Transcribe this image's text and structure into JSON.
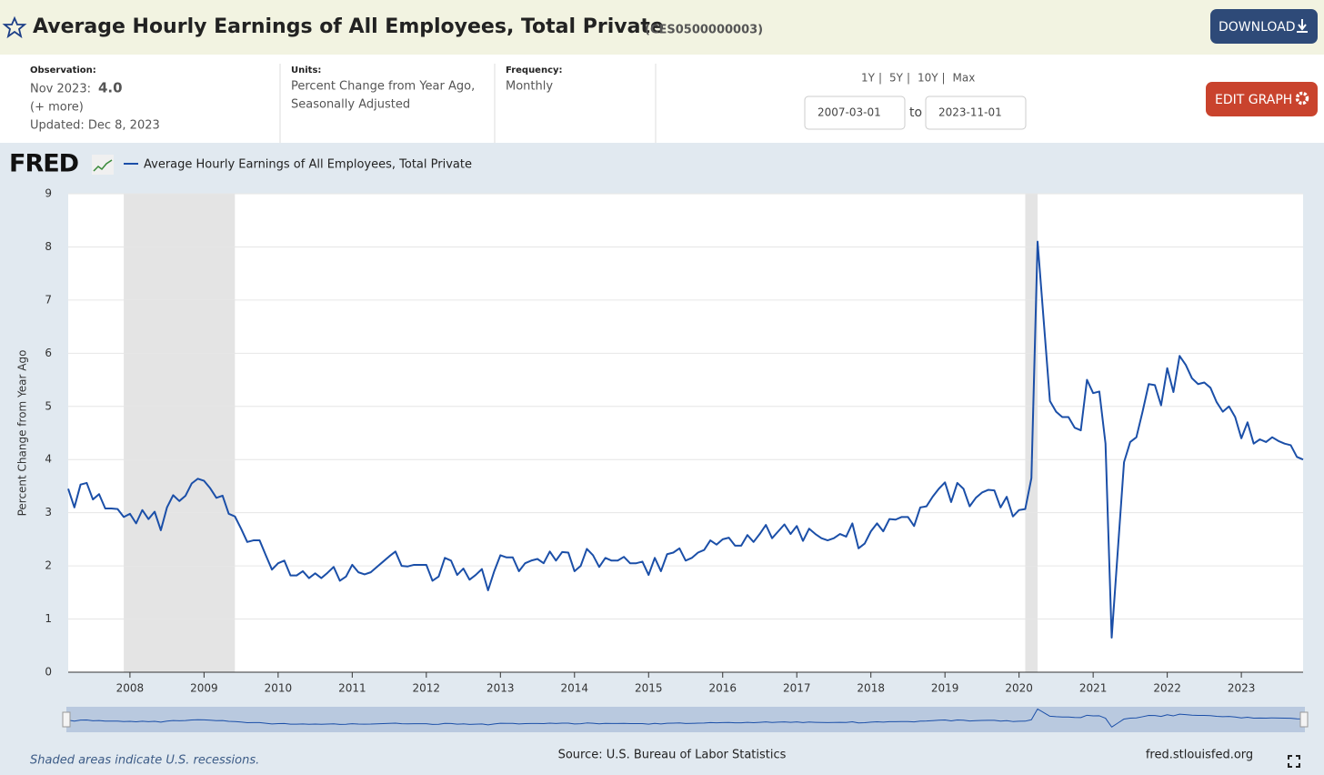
{
  "header": {
    "title": "Average Hourly Earnings of All Employees, Total Private",
    "series_id": "(CES0500000003)",
    "download": "DOWNLOAD"
  },
  "info": {
    "observation_label": "Observation:",
    "observation_date": "Nov 2023:",
    "observation_value": "4.0",
    "more": "(+ more)",
    "updated": "Updated: Dec 8, 2023",
    "units_label": "Units:",
    "units_line1": "Percent Change from Year Ago,",
    "units_line2": "Seasonally Adjusted",
    "frequency_label": "Frequency:",
    "frequency": "Monthly"
  },
  "controls": {
    "ranges": [
      "1Y",
      "5Y",
      "10Y",
      "Max"
    ],
    "from": "2007-03-01",
    "to_label": "to",
    "to": "2023-11-01",
    "edit": "EDIT GRAPH"
  },
  "logo": "FRED",
  "chart_data": {
    "type": "line",
    "y_label": "Percent Change from Year Ago",
    "x": [
      "2007-03",
      "2007-04",
      "2007-05",
      "2007-06",
      "2007-07",
      "2007-08",
      "2007-09",
      "2007-10",
      "2007-11",
      "2007-12",
      "2008-01",
      "2008-02",
      "2008-03",
      "2008-04",
      "2008-05",
      "2008-06",
      "2008-07",
      "2008-08",
      "2008-09",
      "2008-10",
      "2008-11",
      "2008-12",
      "2009-01",
      "2009-02",
      "2009-03",
      "2009-04",
      "2009-05",
      "2009-06",
      "2009-07",
      "2009-08",
      "2009-09",
      "2009-10",
      "2009-11",
      "2009-12",
      "2010-01",
      "2010-02",
      "2010-03",
      "2010-04",
      "2010-05",
      "2010-06",
      "2010-07",
      "2010-08",
      "2010-09",
      "2010-10",
      "2010-11",
      "2010-12",
      "2011-01",
      "2011-02",
      "2011-03",
      "2011-04",
      "2011-05",
      "2011-06",
      "2011-07",
      "2011-08",
      "2011-09",
      "2011-10",
      "2011-11",
      "2011-12",
      "2012-01",
      "2012-02",
      "2012-03",
      "2012-04",
      "2012-05",
      "2012-06",
      "2012-07",
      "2012-08",
      "2012-09",
      "2012-10",
      "2012-11",
      "2012-12",
      "2013-01",
      "2013-02",
      "2013-03",
      "2013-04",
      "2013-05",
      "2013-06",
      "2013-07",
      "2013-08",
      "2013-09",
      "2013-10",
      "2013-11",
      "2013-12",
      "2014-01",
      "2014-02",
      "2014-03",
      "2014-04",
      "2014-05",
      "2014-06",
      "2014-07",
      "2014-08",
      "2014-09",
      "2014-10",
      "2014-11",
      "2014-12",
      "2015-01",
      "2015-02",
      "2015-03",
      "2015-04",
      "2015-05",
      "2015-06",
      "2015-07",
      "2015-08",
      "2015-09",
      "2015-10",
      "2015-11",
      "2015-12",
      "2016-01",
      "2016-02",
      "2016-03",
      "2016-04",
      "2016-05",
      "2016-06",
      "2016-07",
      "2016-08",
      "2016-09",
      "2016-10",
      "2016-11",
      "2016-12",
      "2017-01",
      "2017-02",
      "2017-03",
      "2017-04",
      "2017-05",
      "2017-06",
      "2017-07",
      "2017-08",
      "2017-09",
      "2017-10",
      "2017-11",
      "2017-12",
      "2018-01",
      "2018-02",
      "2018-03",
      "2018-04",
      "2018-05",
      "2018-06",
      "2018-07",
      "2018-08",
      "2018-09",
      "2018-10",
      "2018-11",
      "2018-12",
      "2019-01",
      "2019-02",
      "2019-03",
      "2019-04",
      "2019-05",
      "2019-06",
      "2019-07",
      "2019-08",
      "2019-09",
      "2019-10",
      "2019-11",
      "2019-12",
      "2020-01",
      "2020-02",
      "2020-03",
      "2020-04",
      "2020-05",
      "2020-06",
      "2020-07",
      "2020-08",
      "2020-09",
      "2020-10",
      "2020-11",
      "2020-12",
      "2021-01",
      "2021-02",
      "2021-03",
      "2021-04",
      "2021-05",
      "2021-06",
      "2021-07",
      "2021-08",
      "2021-09",
      "2021-10",
      "2021-11",
      "2021-12",
      "2022-01",
      "2022-02",
      "2022-03",
      "2022-04",
      "2022-05",
      "2022-06",
      "2022-07",
      "2022-08",
      "2022-09",
      "2022-10",
      "2022-11",
      "2022-12",
      "2023-01",
      "2023-02",
      "2023-03",
      "2023-04",
      "2023-05",
      "2023-06",
      "2023-07",
      "2023-08",
      "2023-09",
      "2023-10",
      "2023-11"
    ],
    "series": [
      {
        "name": "Average Hourly Earnings of All Employees, Total Private",
        "color": "#1b4fa8",
        "values": [
          3.45,
          3.1,
          3.53,
          3.56,
          3.25,
          3.35,
          3.08,
          3.08,
          3.07,
          2.92,
          2.98,
          2.8,
          3.05,
          2.88,
          3.02,
          2.67,
          3.1,
          3.33,
          3.22,
          3.32,
          3.55,
          3.64,
          3.6,
          3.46,
          3.28,
          3.32,
          2.98,
          2.93,
          2.7,
          2.45,
          2.48,
          2.48,
          2.2,
          1.93,
          2.05,
          2.1,
          1.82,
          1.82,
          1.9,
          1.77,
          1.86,
          1.77,
          1.87,
          1.98,
          1.72,
          1.8,
          2.02,
          1.88,
          1.84,
          1.88,
          1.98,
          2.08,
          2.18,
          2.27,
          2.0,
          1.99,
          2.02,
          2.02,
          2.02,
          1.72,
          1.8,
          2.15,
          2.1,
          1.83,
          1.95,
          1.74,
          1.83,
          1.94,
          1.54,
          1.9,
          2.2,
          2.16,
          2.16,
          1.9,
          2.05,
          2.1,
          2.13,
          2.05,
          2.27,
          2.1,
          2.26,
          2.25,
          1.9,
          2.0,
          2.32,
          2.2,
          1.98,
          2.15,
          2.1,
          2.1,
          2.17,
          2.05,
          2.05,
          2.08,
          1.83,
          2.15,
          1.9,
          2.22,
          2.25,
          2.33,
          2.1,
          2.15,
          2.25,
          2.3,
          2.48,
          2.4,
          2.5,
          2.53,
          2.38,
          2.38,
          2.58,
          2.45,
          2.6,
          2.77,
          2.52,
          2.65,
          2.78,
          2.6,
          2.75,
          2.47,
          2.7,
          2.6,
          2.52,
          2.48,
          2.52,
          2.6,
          2.55,
          2.8,
          2.33,
          2.42,
          2.65,
          2.8,
          2.65,
          2.88,
          2.87,
          2.92,
          2.92,
          2.75,
          3.1,
          3.12,
          3.3,
          3.45,
          3.57,
          3.2,
          3.56,
          3.45,
          3.12,
          3.28,
          3.38,
          3.43,
          3.42,
          3.1,
          3.3,
          2.93,
          3.05,
          3.07,
          3.65,
          8.1,
          6.6,
          5.1,
          4.9,
          4.8,
          4.8,
          4.6,
          4.55,
          5.5,
          5.25,
          5.28,
          4.3,
          0.65,
          2.3,
          3.95,
          4.33,
          4.42,
          4.9,
          5.42,
          5.4,
          5.02,
          5.72,
          5.27,
          5.95,
          5.78,
          5.53,
          5.42,
          5.45,
          5.35,
          5.08,
          4.9,
          5.0,
          4.8,
          4.4,
          4.7,
          4.3,
          4.38,
          4.33,
          4.42,
          4.35,
          4.3,
          4.27,
          4.05,
          4.0
        ]
      }
    ],
    "recessions": [
      [
        "2007-12",
        "2009-06"
      ],
      [
        "2020-02",
        "2020-04"
      ]
    ],
    "xlim": [
      "2007-03",
      "2023-11"
    ],
    "xticks": [
      {
        "value": "2008-01",
        "label": "2008"
      },
      {
        "value": "2009-01",
        "label": "2009"
      },
      {
        "value": "2010-01",
        "label": "2010"
      },
      {
        "value": "2011-01",
        "label": "2011"
      },
      {
        "value": "2012-01",
        "label": "2012"
      },
      {
        "value": "2013-01",
        "label": "2013"
      },
      {
        "value": "2014-01",
        "label": "2014"
      },
      {
        "value": "2015-01",
        "label": "2015"
      },
      {
        "value": "2016-01",
        "label": "2016"
      },
      {
        "value": "2017-01",
        "label": "2017"
      },
      {
        "value": "2018-01",
        "label": "2018"
      },
      {
        "value": "2019-01",
        "label": "2019"
      },
      {
        "value": "2020-01",
        "label": "2020"
      },
      {
        "value": "2021-01",
        "label": "2021"
      },
      {
        "value": "2022-01",
        "label": "2022"
      },
      {
        "value": "2023-01",
        "label": "2023"
      }
    ],
    "ylim": [
      0,
      9
    ],
    "yticks": [
      0,
      1,
      2,
      3,
      4,
      5,
      6,
      7,
      8,
      9
    ],
    "grid": true
  },
  "footer": {
    "note": "Shaded areas indicate U.S. recessions.",
    "source": "Source: U.S. Bureau of Labor Statistics",
    "site": "fred.stlouisfed.org"
  }
}
